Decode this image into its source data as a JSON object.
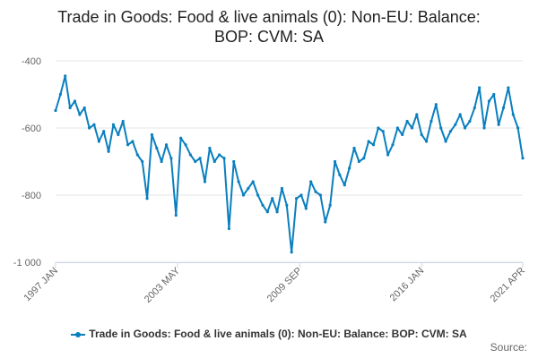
{
  "chart_data": {
    "type": "line",
    "title_lines": [
      "Trade in Goods: Food & live animals (0): Non-EU: Balance:",
      "BOP: CVM: SA"
    ],
    "xlabel": "",
    "ylabel": "",
    "ylim": [
      -1000,
      -400
    ],
    "yticks": [
      -400,
      -600,
      -800,
      -1000
    ],
    "ytick_labels": [
      "-400",
      "-600",
      "-800",
      "-1 000"
    ],
    "xlim": [
      1997.0,
      2021.25
    ],
    "xticks": [
      1997.0,
      2003.33,
      2009.67,
      2016.0,
      2021.25
    ],
    "xtick_labels": [
      "1997 JAN",
      "2003 MAY",
      "2009 SEP",
      "2016 JAN",
      "2021 APR"
    ],
    "grid": true,
    "legend_position": "bottom",
    "color": "#0a7fbf",
    "series": [
      {
        "name": "Trade in Goods: Food & live animals (0): Non-EU: Balance: BOP: CVM: SA",
        "x": [
          1997.0,
          1997.25,
          1997.5,
          1997.75,
          1998.0,
          1998.25,
          1998.5,
          1998.75,
          1999.0,
          1999.25,
          1999.5,
          1999.75,
          2000.0,
          2000.25,
          2000.5,
          2000.75,
          2001.0,
          2001.25,
          2001.5,
          2001.75,
          2002.0,
          2002.25,
          2002.5,
          2002.75,
          2003.0,
          2003.25,
          2003.5,
          2003.75,
          2004.0,
          2004.25,
          2004.5,
          2004.75,
          2005.0,
          2005.25,
          2005.5,
          2005.75,
          2006.0,
          2006.25,
          2006.5,
          2006.75,
          2007.0,
          2007.25,
          2007.5,
          2007.75,
          2008.0,
          2008.25,
          2008.5,
          2008.75,
          2009.0,
          2009.25,
          2009.5,
          2009.75,
          2010.0,
          2010.25,
          2010.5,
          2010.75,
          2011.0,
          2011.25,
          2011.5,
          2011.75,
          2012.0,
          2012.25,
          2012.5,
          2012.75,
          2013.0,
          2013.25,
          2013.5,
          2013.75,
          2014.0,
          2014.25,
          2014.5,
          2014.75,
          2015.0,
          2015.25,
          2015.5,
          2015.75,
          2016.0,
          2016.25,
          2016.5,
          2016.75,
          2017.0,
          2017.25,
          2017.5,
          2017.75,
          2018.0,
          2018.25,
          2018.5,
          2018.75,
          2019.0,
          2019.25,
          2019.5,
          2019.75,
          2020.0,
          2020.25,
          2020.5,
          2020.75,
          2021.0,
          2021.25
        ],
        "values": [
          -548,
          -500,
          -445,
          -540,
          -520,
          -560,
          -540,
          -600,
          -590,
          -640,
          -610,
          -670,
          -590,
          -620,
          -580,
          -650,
          -640,
          -680,
          -700,
          -810,
          -620,
          -660,
          -700,
          -650,
          -690,
          -860,
          -630,
          -650,
          -680,
          -700,
          -690,
          -760,
          -660,
          -700,
          -680,
          -690,
          -900,
          -700,
          -760,
          -800,
          -780,
          -760,
          -800,
          -830,
          -850,
          -810,
          -850,
          -780,
          -830,
          -970,
          -810,
          -800,
          -840,
          -760,
          -790,
          -800,
          -880,
          -830,
          -700,
          -740,
          -770,
          -720,
          -660,
          -700,
          -690,
          -640,
          -650,
          -600,
          -610,
          -680,
          -650,
          -600,
          -620,
          -580,
          -600,
          -560,
          -620,
          -640,
          -580,
          -530,
          -600,
          -640,
          -610,
          -590,
          -560,
          -600,
          -580,
          -540,
          -480,
          -600,
          -520,
          -500,
          -590,
          -540,
          -480,
          -560,
          -600,
          -690
        ]
      }
    ]
  },
  "legend": {
    "label": "Trade in Goods: Food & live animals (0): Non-EU: Balance: BOP: CVM: SA"
  },
  "source": {
    "label": "Source:"
  }
}
